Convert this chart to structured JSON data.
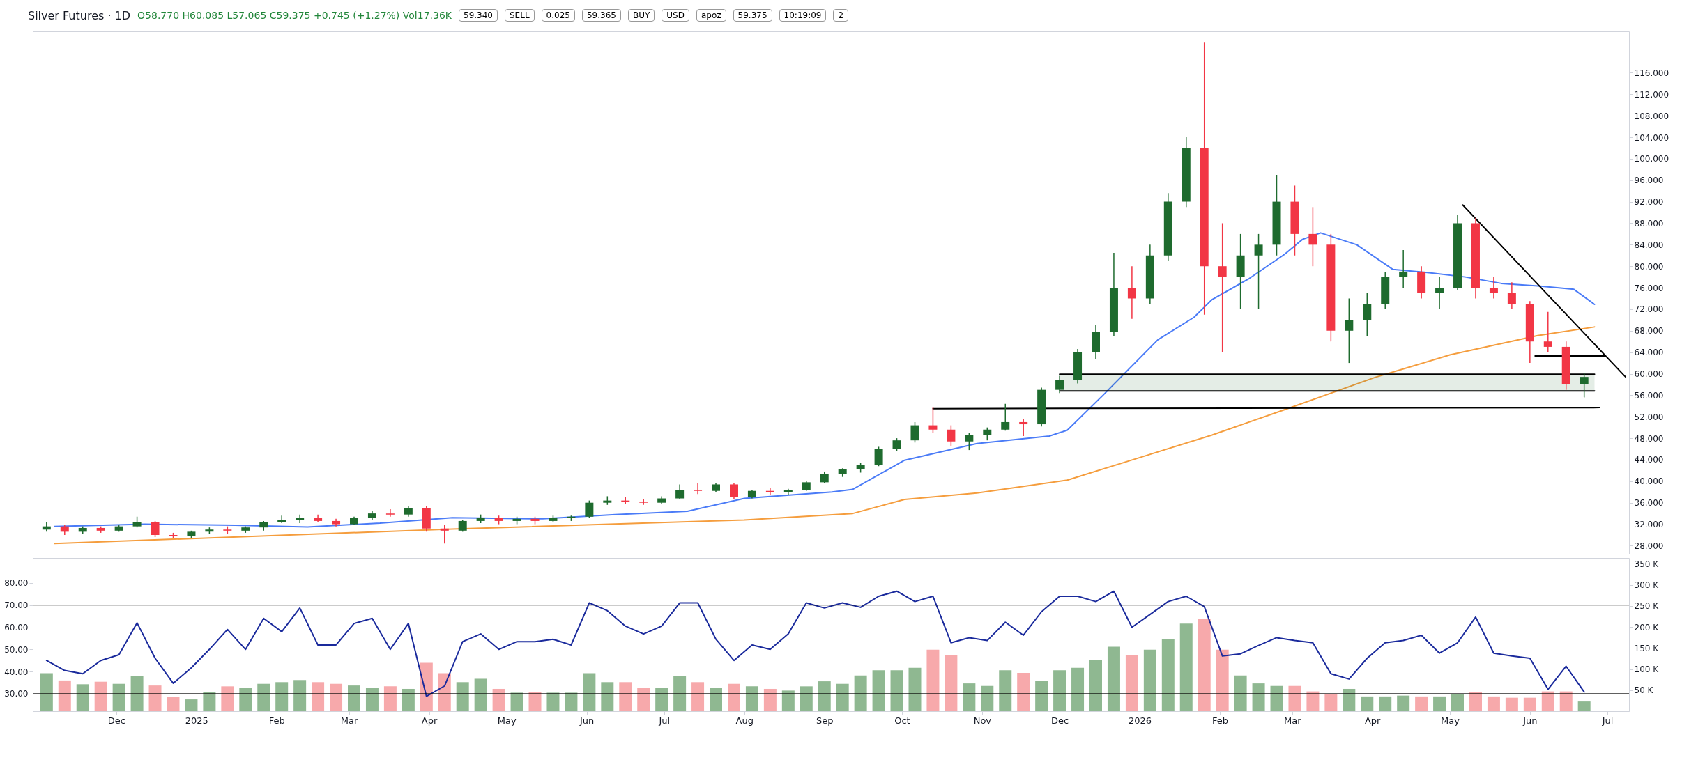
{
  "chart_data": [
    {
      "type": "candlestick",
      "title": "Silver Futures · 1D",
      "annotations": [
        "O58.770 H60.085 L57.065 C59.375 +0.745 (+1.27%) Vol17.36K",
        "59.340",
        "SELL",
        "0.025",
        "59.365",
        "BUY",
        "USD",
        "apoz",
        "59.375",
        "10:19:09"
      ],
      "x": [
        "2024-11-04",
        "2024-11-11",
        "2024-11-18",
        "2024-11-25",
        "2024-12-02",
        "2024-12-09",
        "2024-12-16",
        "2024-12-23",
        "2024-12-30",
        "2025-01-06",
        "2025-01-13",
        "2025-01-20",
        "2025-01-27",
        "2025-02-03",
        "2025-02-10",
        "2025-02-17",
        "2025-02-24",
        "2025-03-03",
        "2025-03-10",
        "2025-03-17",
        "2025-03-24",
        "2025-03-31",
        "2025-04-07",
        "2025-04-14",
        "2025-04-21",
        "2025-04-28",
        "2025-05-05",
        "2025-05-12",
        "2025-05-19",
        "2025-05-26",
        "2025-06-02",
        "2025-06-09",
        "2025-06-16",
        "2025-06-23",
        "2025-06-30",
        "2025-07-07",
        "2025-07-14",
        "2025-07-21",
        "2025-07-28",
        "2025-08-04",
        "2025-08-11",
        "2025-08-18",
        "2025-08-25",
        "2025-09-01",
        "2025-09-08",
        "2025-09-15",
        "2025-09-22",
        "2025-09-29",
        "2025-10-06",
        "2025-10-13",
        "2025-10-20",
        "2025-10-27",
        "2025-11-03",
        "2025-11-10",
        "2025-11-17",
        "2025-11-24",
        "2025-12-01",
        "2025-12-08",
        "2025-12-15",
        "2025-12-22",
        "2025-12-29",
        "2026-01-05",
        "2026-01-12",
        "2026-01-19",
        "2026-01-26",
        "2026-02-02",
        "2026-02-09",
        "2026-02-16",
        "2026-02-23",
        "2026-03-02",
        "2026-03-09",
        "2026-03-16",
        "2026-03-23",
        "2026-03-30",
        "2026-04-06",
        "2026-04-13",
        "2026-04-20",
        "2026-04-27",
        "2026-05-04",
        "2026-05-11",
        "2026-05-18",
        "2026-05-25",
        "2026-06-01",
        "2026-06-08",
        "2026-06-15",
        "2026-06-22"
      ],
      "ohlc": [
        [
          31.0,
          32.4,
          30.6,
          31.6
        ],
        [
          31.6,
          31.8,
          30.0,
          30.6
        ],
        [
          30.6,
          31.6,
          30.2,
          31.3
        ],
        [
          31.3,
          31.6,
          30.4,
          30.8
        ],
        [
          30.8,
          31.8,
          30.6,
          31.6
        ],
        [
          31.6,
          33.4,
          31.4,
          32.4
        ],
        [
          32.4,
          32.6,
          29.6,
          30.0
        ],
        [
          30.0,
          30.4,
          29.4,
          29.8
        ],
        [
          29.8,
          30.8,
          29.4,
          30.6
        ],
        [
          30.6,
          31.4,
          30.2,
          31.0
        ],
        [
          31.0,
          31.6,
          30.2,
          30.8
        ],
        [
          30.8,
          31.6,
          30.4,
          31.4
        ],
        [
          31.4,
          32.6,
          30.8,
          32.4
        ],
        [
          32.4,
          33.6,
          32.2,
          32.8
        ],
        [
          32.8,
          33.8,
          32.2,
          33.2
        ],
        [
          33.2,
          33.8,
          32.4,
          32.6
        ],
        [
          32.6,
          33.0,
          31.6,
          32.0
        ],
        [
          32.0,
          33.4,
          31.8,
          33.2
        ],
        [
          33.2,
          34.4,
          32.8,
          34.0
        ],
        [
          34.0,
          34.8,
          33.4,
          33.8
        ],
        [
          33.8,
          35.4,
          33.4,
          35.0
        ],
        [
          35.0,
          35.4,
          30.6,
          31.2
        ],
        [
          31.2,
          31.8,
          28.4,
          30.8
        ],
        [
          30.8,
          32.8,
          30.6,
          32.6
        ],
        [
          32.6,
          33.8,
          32.2,
          33.2
        ],
        [
          33.2,
          33.6,
          32.0,
          32.6
        ],
        [
          32.6,
          33.4,
          32.0,
          33.0
        ],
        [
          33.0,
          33.4,
          32.0,
          32.6
        ],
        [
          32.6,
          33.6,
          32.4,
          33.2
        ],
        [
          33.2,
          33.6,
          32.6,
          33.4
        ],
        [
          33.4,
          36.4,
          33.2,
          36.0
        ],
        [
          36.0,
          37.2,
          35.6,
          36.4
        ],
        [
          36.4,
          37.0,
          35.8,
          36.2
        ],
        [
          36.2,
          36.6,
          35.6,
          36.0
        ],
        [
          36.0,
          37.2,
          35.8,
          36.8
        ],
        [
          36.8,
          39.4,
          36.6,
          38.4
        ],
        [
          38.4,
          39.6,
          37.6,
          38.2
        ],
        [
          38.2,
          39.6,
          38.0,
          39.4
        ],
        [
          39.4,
          39.6,
          36.6,
          37.0
        ],
        [
          37.0,
          38.4,
          36.8,
          38.2
        ],
        [
          38.2,
          38.8,
          37.4,
          38.0
        ],
        [
          38.0,
          38.6,
          37.4,
          38.4
        ],
        [
          38.4,
          40.0,
          38.2,
          39.8
        ],
        [
          39.8,
          41.8,
          39.6,
          41.4
        ],
        [
          41.4,
          42.4,
          40.8,
          42.2
        ],
        [
          42.2,
          43.4,
          41.6,
          43.0
        ],
        [
          43.0,
          46.4,
          42.8,
          46.0
        ],
        [
          46.0,
          48.0,
          45.6,
          47.6
        ],
        [
          47.6,
          51.0,
          47.2,
          50.4
        ],
        [
          50.4,
          53.8,
          49.0,
          49.6
        ],
        [
          49.6,
          50.4,
          46.6,
          47.4
        ],
        [
          47.4,
          49.0,
          45.8,
          48.6
        ],
        [
          48.6,
          50.0,
          47.6,
          49.6
        ],
        [
          49.6,
          54.4,
          49.4,
          51.0
        ],
        [
          51.0,
          51.6,
          48.4,
          50.6
        ],
        [
          50.6,
          57.4,
          50.2,
          57.0
        ],
        [
          57.0,
          59.6,
          56.4,
          58.8
        ],
        [
          58.8,
          64.6,
          58.2,
          64.0
        ],
        [
          64.0,
          69.0,
          62.8,
          67.8
        ],
        [
          67.8,
          82.5,
          67.0,
          76.0
        ],
        [
          76.0,
          80.0,
          70.2,
          74.0
        ],
        [
          74.0,
          84.0,
          73.0,
          82.0
        ],
        [
          82.0,
          93.6,
          81.0,
          92.0
        ],
        [
          92.0,
          104.0,
          91.0,
          102.0
        ],
        [
          102.0,
          121.6,
          71.0,
          80.0
        ],
        [
          80.0,
          88.0,
          64.0,
          78.0
        ],
        [
          78.0,
          86.0,
          72.0,
          82.0
        ],
        [
          82.0,
          86.0,
          72.0,
          84.0
        ],
        [
          84.0,
          97.0,
          82.0,
          92.0
        ],
        [
          92.0,
          95.0,
          82.0,
          86.0
        ],
        [
          86.0,
          91.0,
          80.0,
          84.0
        ],
        [
          84.0,
          86.0,
          66.0,
          68.0
        ],
        [
          68.0,
          74.0,
          62.0,
          70.0
        ],
        [
          70.0,
          75.0,
          67.0,
          73.0
        ],
        [
          73.0,
          79.0,
          72.0,
          78.0
        ],
        [
          78.0,
          83.0,
          76.0,
          79.0
        ],
        [
          79.0,
          80.0,
          74.0,
          75.0
        ],
        [
          75.0,
          78.0,
          72.0,
          76.0
        ],
        [
          76.0,
          89.6,
          75.5,
          88.0
        ],
        [
          88.0,
          89.0,
          74.0,
          76.0
        ],
        [
          76.0,
          78.0,
          74.0,
          75.0
        ],
        [
          75.0,
          77.0,
          72.0,
          73.0
        ],
        [
          73.0,
          73.5,
          62.0,
          66.0
        ],
        [
          66.0,
          71.5,
          64.0,
          65.0
        ],
        [
          65.0,
          66.0,
          57.0,
          58.0
        ],
        [
          58.0,
          60.1,
          55.6,
          59.4
        ]
      ],
      "series": [
        {
          "type": "line",
          "color": "#4a7bf7",
          "x": [
            "2024-11-07",
            "2024-12-12",
            "2025-01-16",
            "2025-02-13",
            "2025-03-13",
            "2025-04-10",
            "2025-05-15",
            "2025-06-12",
            "2025-07-10",
            "2025-08-01",
            "2025-09-04",
            "2025-09-12",
            "2025-10-02",
            "2025-10-30",
            "2025-11-27",
            "2025-12-04",
            "2025-12-18",
            "2026-01-08",
            "2026-01-22",
            "2026-01-29",
            "2026-02-12",
            "2026-02-26",
            "2026-03-05",
            "2026-03-12",
            "2026-03-26",
            "2026-04-09",
            "2026-04-23",
            "2026-05-07",
            "2026-05-21",
            "2026-06-05",
            "2026-06-18",
            "2026-06-26"
          ],
          "values": [
            31.6,
            32.0,
            31.8,
            31.5,
            32.2,
            33.2,
            33.0,
            33.8,
            34.4,
            36.8,
            38.0,
            38.5,
            43.9,
            47.0,
            48.4,
            49.5,
            56.1,
            66.3,
            70.5,
            73.8,
            77.6,
            82.2,
            85.0,
            86.2,
            84.0,
            79.4,
            78.8,
            78.0,
            76.8,
            76.3,
            75.7,
            72.9
          ]
        },
        {
          "type": "line",
          "color": "#f59d3d",
          "x": [
            "2024-11-07",
            "2025-04-10",
            "2025-08-01",
            "2025-09-12",
            "2025-10-02",
            "2025-10-30",
            "2025-12-04",
            "2026-01-01",
            "2026-01-29",
            "2026-02-26",
            "2026-04-02",
            "2026-05-01",
            "2026-06-04",
            "2026-06-26"
          ],
          "values": [
            28.4,
            31.1,
            32.8,
            34.0,
            36.6,
            37.8,
            40.2,
            44.4,
            48.6,
            53.3,
            59.3,
            63.5,
            67.1,
            68.7
          ]
        },
        {
          "type": "line",
          "color": "#000000",
          "x": [
            "2025-10-13",
            "2026-06-28"
          ],
          "values": [
            53.5,
            53.7
          ]
        },
        {
          "type": "line",
          "color": "#000000",
          "x": [
            "2025-12-01",
            "2026-06-26"
          ],
          "values": [
            59.9,
            59.9
          ],
          "lower": [
            56.8,
            56.8
          ],
          "upper": [
            59.9,
            59.9
          ]
        },
        {
          "type": "line",
          "color": "#000000",
          "x": [
            "2025-12-01",
            "2026-06-26"
          ],
          "values": [
            56.8,
            56.8
          ]
        },
        {
          "type": "line",
          "color": "#000000",
          "x": [
            "2026-06-03",
            "2026-06-30"
          ],
          "values": [
            63.3,
            63.3
          ]
        },
        {
          "type": "line",
          "color": "#000000",
          "x": [
            "2026-05-06",
            "2026-07-08"
          ],
          "values": [
            91.4,
            59.4
          ]
        }
      ],
      "xlim": [
        "2024-10-31",
        "2026-07-08"
      ],
      "ylim": [
        26.5,
        123.7
      ],
      "yticks": [
        {
          "value": 28,
          "label": "28.000"
        },
        {
          "value": 32,
          "label": "32.000"
        },
        {
          "value": 36,
          "label": "36.000"
        },
        {
          "value": 40,
          "label": "40.000"
        },
        {
          "value": 44,
          "label": "44.000"
        },
        {
          "value": 48,
          "label": "48.000"
        },
        {
          "value": 52,
          "label": "52.000"
        },
        {
          "value": 56,
          "label": "56.000"
        },
        {
          "value": 60,
          "label": "60.000"
        },
        {
          "value": 64,
          "label": "64.000"
        },
        {
          "value": 68,
          "label": "68.000"
        },
        {
          "value": 72,
          "label": "72.000"
        },
        {
          "value": 76,
          "label": "76.000"
        },
        {
          "value": 80,
          "label": "80.000"
        },
        {
          "value": 84,
          "label": "84.000"
        },
        {
          "value": 88,
          "label": "88.000"
        },
        {
          "value": 92,
          "label": "92.000"
        },
        {
          "value": 96,
          "label": "96.000"
        },
        {
          "value": 100,
          "label": "100.000"
        },
        {
          "value": 104,
          "label": "104.000"
        },
        {
          "value": 108,
          "label": "108.000"
        },
        {
          "value": 112,
          "label": "112.000"
        },
        {
          "value": 116,
          "label": "116.000"
        }
      ],
      "tick_labels": "y"
    },
    {
      "type": "line",
      "annotations": [
        "2"
      ],
      "x": [
        "2024-11-04",
        "2024-11-11",
        "2024-11-18",
        "2024-11-25",
        "2024-12-02",
        "2024-12-09",
        "2024-12-16",
        "2024-12-23",
        "2024-12-30",
        "2025-01-06",
        "2025-01-13",
        "2025-01-20",
        "2025-01-27",
        "2025-02-03",
        "2025-02-10",
        "2025-02-17",
        "2025-02-24",
        "2025-03-03",
        "2025-03-10",
        "2025-03-17",
        "2025-03-24",
        "2025-03-31",
        "2025-04-07",
        "2025-04-14",
        "2025-04-21",
        "2025-04-28",
        "2025-05-05",
        "2025-05-12",
        "2025-05-19",
        "2025-05-26",
        "2025-06-02",
        "2025-06-09",
        "2025-06-16",
        "2025-06-23",
        "2025-06-30",
        "2025-07-07",
        "2025-07-14",
        "2025-07-21",
        "2025-07-28",
        "2025-08-04",
        "2025-08-11",
        "2025-08-18",
        "2025-08-25",
        "2025-09-01",
        "2025-09-08",
        "2025-09-15",
        "2025-09-22",
        "2025-09-29",
        "2025-10-06",
        "2025-10-13",
        "2025-10-20",
        "2025-10-27",
        "2025-11-03",
        "2025-11-10",
        "2025-11-17",
        "2025-11-24",
        "2025-12-01",
        "2025-12-08",
        "2025-12-15",
        "2025-12-22",
        "2025-12-29",
        "2026-01-05",
        "2026-01-12",
        "2026-01-19",
        "2026-01-26",
        "2026-02-02",
        "2026-02-09",
        "2026-02-16",
        "2026-02-23",
        "2026-03-02",
        "2026-03-09",
        "2026-03-16",
        "2026-03-23",
        "2026-03-30",
        "2026-04-06",
        "2026-04-13",
        "2026-04-20",
        "2026-04-27",
        "2026-05-04",
        "2026-05-11",
        "2026-05-18",
        "2026-05-25",
        "2026-06-01",
        "2026-06-08",
        "2026-06-15",
        "2026-06-22"
      ],
      "series": [
        {
          "type": "bar",
          "axis": "y2",
          "values": [
            90000,
            73000,
            64000,
            70000,
            65000,
            84000,
            61000,
            34000,
            28000,
            46000,
            59000,
            56000,
            65000,
            69000,
            74000,
            69000,
            65000,
            61000,
            56000,
            59000,
            53000,
            115000,
            90000,
            69000,
            77000,
            53000,
            44000,
            46000,
            44000,
            44000,
            90000,
            69000,
            69000,
            56000,
            56000,
            84000,
            69000,
            56000,
            65000,
            59000,
            53000,
            49000,
            59000,
            71000,
            65000,
            85000,
            97000,
            97000,
            103000,
            146000,
            134000,
            66000,
            60000,
            97000,
            91000,
            72000,
            97000,
            103000,
            122000,
            153000,
            134000,
            146000,
            171000,
            208000,
            220000,
            146000,
            85000,
            66000,
            60000,
            60000,
            47000,
            41000,
            53000,
            35000,
            35000,
            37000,
            35000,
            35000,
            41000,
            45000,
            35000,
            32000,
            32000,
            47000,
            47000,
            23000
          ],
          "colors": [
            "#8fb891",
            "#f7a9ab",
            "#8fb891",
            "#f7a9ab",
            "#8fb891",
            "#8fb891",
            "#f7a9ab",
            "#f7a9ab",
            "#8fb891",
            "#8fb891",
            "#f7a9ab",
            "#8fb891",
            "#8fb891",
            "#8fb891",
            "#8fb891",
            "#f7a9ab",
            "#f7a9ab",
            "#8fb891",
            "#8fb891",
            "#f7a9ab",
            "#8fb891",
            "#f7a9ab",
            "#f7a9ab",
            "#8fb891",
            "#8fb891",
            "#f7a9ab",
            "#8fb891",
            "#f7a9ab",
            "#8fb891",
            "#8fb891",
            "#8fb891",
            "#8fb891",
            "#f7a9ab",
            "#f7a9ab",
            "#8fb891",
            "#8fb891",
            "#f7a9ab",
            "#8fb891",
            "#f7a9ab",
            "#8fb891",
            "#f7a9ab",
            "#8fb891",
            "#8fb891",
            "#8fb891",
            "#8fb891",
            "#8fb891",
            "#8fb891",
            "#8fb891",
            "#8fb891",
            "#f7a9ab",
            "#f7a9ab",
            "#8fb891",
            "#8fb891",
            "#8fb891",
            "#f7a9ab",
            "#8fb891",
            "#8fb891",
            "#8fb891",
            "#8fb891",
            "#8fb891",
            "#f7a9ab",
            "#8fb891",
            "#8fb891",
            "#8fb891",
            "#f7a9ab",
            "#f7a9ab",
            "#8fb891",
            "#8fb891",
            "#8fb891",
            "#f7a9ab",
            "#f7a9ab",
            "#f7a9ab",
            "#8fb891",
            "#8fb891",
            "#8fb891",
            "#8fb891",
            "#f7a9ab",
            "#8fb891",
            "#8fb891",
            "#f7a9ab",
            "#f7a9ab",
            "#f7a9ab",
            "#f7a9ab",
            "#f7a9ab",
            "#f7a9ab",
            "#8fb891"
          ]
        },
        {
          "color": "#1a2a9c",
          "values": [
            45,
            40.5,
            39,
            45,
            47.6,
            62,
            46,
            34.7,
            41.7,
            50,
            59,
            50,
            64,
            58,
            68.7,
            52,
            52,
            61.7,
            64,
            50,
            61.7,
            28.8,
            33.5,
            53.5,
            57,
            50,
            53.5,
            53.5,
            54.6,
            52,
            71,
            67.5,
            60.5,
            57,
            60.5,
            71,
            71,
            54.6,
            45,
            52,
            50,
            57,
            71,
            68.7,
            71,
            69,
            74,
            76.3,
            71.6,
            74,
            53,
            55.3,
            54,
            62.3,
            56.4,
            67,
            74,
            74,
            71.6,
            76.3,
            60,
            65.8,
            71.6,
            74,
            69.3,
            47,
            48,
            51.8,
            55.3,
            54,
            53,
            39,
            36.6,
            46,
            53,
            54,
            56.4,
            48.3,
            53,
            64.6,
            48.3,
            47,
            46,
            32,
            42.4,
            30.8
          ]
        }
      ],
      "ref_lines": [
        {
          "axis": "y",
          "value": 70,
          "color": "#000000"
        },
        {
          "axis": "y",
          "value": 30,
          "color": "#000000"
        }
      ],
      "xlim": [
        "2024-10-31",
        "2026-07-08"
      ],
      "xticks": [
        {
          "value": "2024-12-01",
          "label": "Dec"
        },
        {
          "value": "2025-01-01",
          "label": "2025"
        },
        {
          "value": "2025-02-01",
          "label": "Feb"
        },
        {
          "value": "2025-03-01",
          "label": "Mar"
        },
        {
          "value": "2025-04-01",
          "label": "Apr"
        },
        {
          "value": "2025-05-01",
          "label": "May"
        },
        {
          "value": "2025-06-01",
          "label": "Jun"
        },
        {
          "value": "2025-07-01",
          "label": "Jul"
        },
        {
          "value": "2025-08-01",
          "label": "Aug"
        },
        {
          "value": "2025-09-01",
          "label": "Sep"
        },
        {
          "value": "2025-10-01",
          "label": "Oct"
        },
        {
          "value": "2025-11-01",
          "label": "Nov"
        },
        {
          "value": "2025-12-01",
          "label": "Dec"
        },
        {
          "value": "2026-01-01",
          "label": "2026"
        },
        {
          "value": "2026-02-01",
          "label": "Feb"
        },
        {
          "value": "2026-03-01",
          "label": "Mar"
        },
        {
          "value": "2026-04-01",
          "label": "Apr"
        },
        {
          "value": "2026-05-01",
          "label": "May"
        },
        {
          "value": "2026-06-01",
          "label": "Jun"
        },
        {
          "value": "2026-07-01",
          "label": "Jul"
        }
      ],
      "ylim": [
        22.1,
        91.3
      ],
      "yticks": [
        {
          "value": 30,
          "label": "30.00"
        },
        {
          "value": 40,
          "label": "40.00"
        },
        {
          "value": 50,
          "label": "50.00"
        },
        {
          "value": 60,
          "label": "60.00"
        },
        {
          "value": 70,
          "label": "70.00"
        },
        {
          "value": 80,
          "label": "80.00"
        }
      ],
      "y2lim": [
        0,
        364000
      ],
      "y2ticks": [
        {
          "value": 50000,
          "label": "50 K"
        },
        {
          "value": 100000,
          "label": "100 K"
        },
        {
          "value": 150000,
          "label": "150 K"
        },
        {
          "value": 200000,
          "label": "200 K"
        },
        {
          "value": 250000,
          "label": "250 K"
        },
        {
          "value": 300000,
          "label": "300 K"
        },
        {
          "value": 350000,
          "label": "350 K"
        }
      ]
    }
  ]
}
